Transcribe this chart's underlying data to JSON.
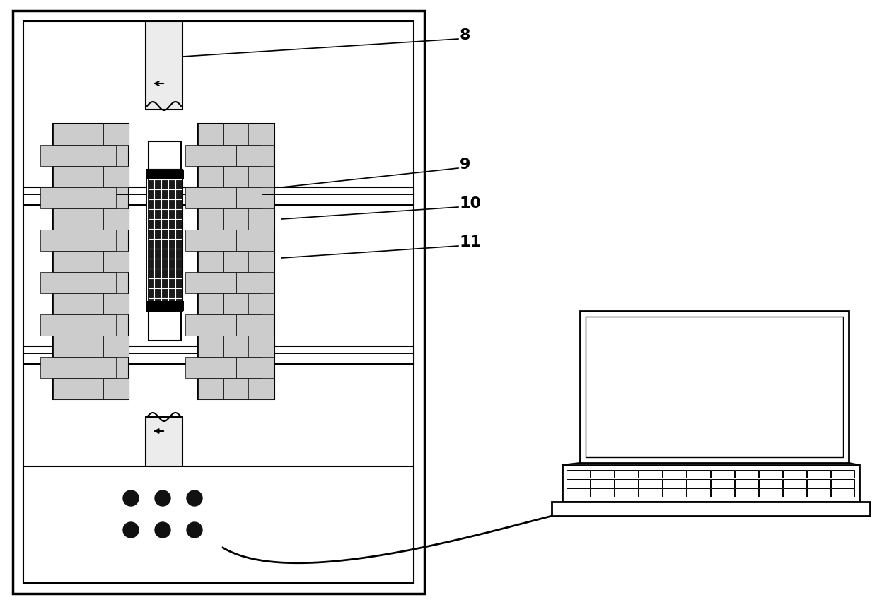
{
  "bg_color": "#ffffff",
  "line_color": "#000000",
  "label_8": "8",
  "label_9": "9",
  "label_10": "10",
  "label_11": "11",
  "figsize": [
    12.4,
    8.59
  ],
  "dpi": 100
}
